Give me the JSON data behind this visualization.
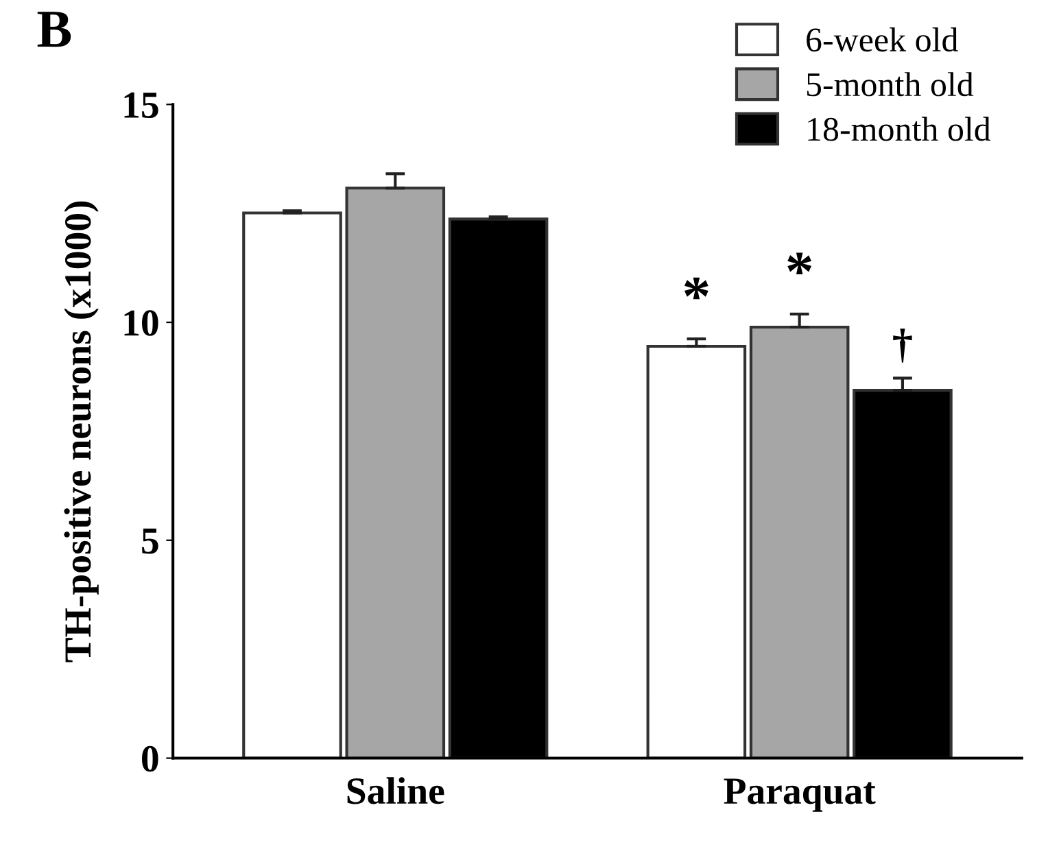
{
  "chart_data": {
    "type": "bar",
    "title": "B",
    "ylabel": "TH-positive neurons (x1000)",
    "categories": [
      "Saline",
      "Paraquat"
    ],
    "series": [
      {
        "name": "6-week old",
        "color": "#ffffff",
        "values": [
          12.51,
          9.45
        ],
        "errors": [
          [
            12.51,
            12.56
          ],
          [
            9.45,
            9.62
          ]
        ]
      },
      {
        "name": "5-month old",
        "color": "#a6a6a6",
        "values": [
          13.08,
          9.89
        ],
        "errors": [
          [
            13.08,
            13.41
          ],
          [
            9.89,
            10.19
          ]
        ]
      },
      {
        "name": "18-month old",
        "color": "#000000",
        "values": [
          12.37,
          8.44
        ],
        "errors": [
          [
            12.37,
            12.42
          ],
          [
            8.44,
            8.72
          ]
        ]
      }
    ],
    "annotations": [
      "*",
      "*",
      "†"
    ],
    "ylim": [
      0,
      15
    ],
    "yticks": [
      0,
      5,
      10,
      15
    ],
    "grid": false,
    "legend": "top right"
  }
}
